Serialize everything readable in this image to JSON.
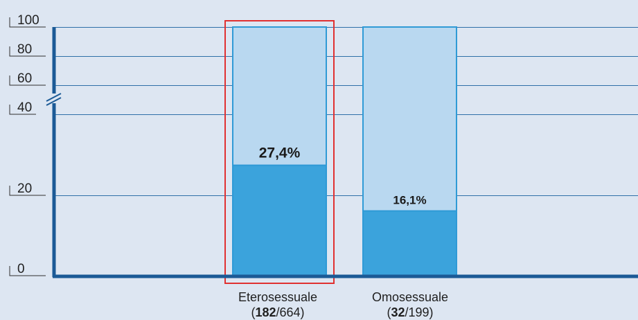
{
  "chart_data": {
    "type": "bar",
    "stacked_to_total": true,
    "ylim": [
      0,
      100
    ],
    "y_axis_break": "between 40 and 60",
    "y_ticks": [
      "100",
      "80",
      "60",
      "40",
      "20",
      "0"
    ],
    "grid": true,
    "categories": [
      {
        "name": "Eterosessuale",
        "numerator": "182",
        "denominator": "/664",
        "percent": 27.4,
        "label": "27,4%",
        "highlighted": true
      },
      {
        "name": "Omosessuale",
        "numerator": "32",
        "denominator": "/199",
        "percent": 16.1,
        "label": "16,1%",
        "highlighted": false
      }
    ],
    "colors": {
      "filled": "#3ba3dc",
      "remainder": "#b9d8f0",
      "bar_border": "#2f9ad6",
      "axis": "#1b5a96",
      "grid": "#2e6fa8",
      "highlight": "#e03030",
      "background": "#dde6f2"
    }
  }
}
